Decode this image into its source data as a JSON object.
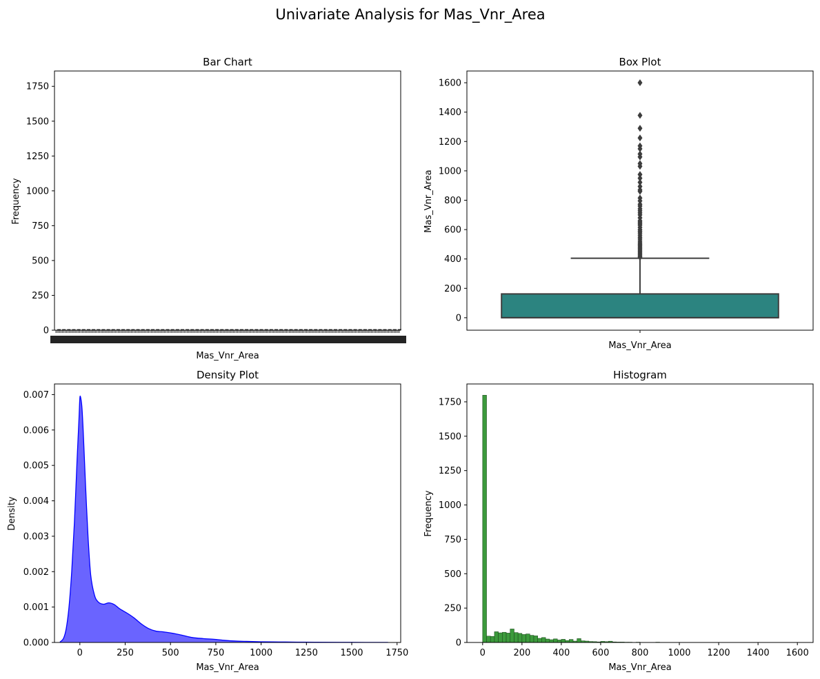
{
  "figure": {
    "suptitle": "Univariate Analysis for Mas_Vnr_Area",
    "colors": {
      "box_fill": "#2c8480",
      "box_line": "#3d3d3d",
      "density_fill": "#6a64ff",
      "density_line": "#0000ff",
      "hist_fill": "#3c9a3c",
      "hist_edge": "#1f4d1f",
      "axis": "#000000"
    }
  },
  "chart_data": [
    {
      "type": "bar",
      "title": "Bar Chart",
      "xlabel": "Mas_Vnr_Area",
      "ylabel": "Frequency",
      "ylim": [
        0,
        1860
      ],
      "yticks": [
        0,
        250,
        500,
        750,
        1000,
        1250,
        1500,
        1750
      ],
      "note": "x tick labels are dense and overlapping (one per unique value), rendered illegibly"
    },
    {
      "type": "box",
      "title": "Box Plot",
      "xlabel": "Mas_Vnr_Area",
      "ylabel": "Mas_Vnr_Area",
      "ylim": [
        -85,
        1680
      ],
      "yticks": [
        0,
        200,
        400,
        600,
        800,
        1000,
        1200,
        1400,
        1600
      ],
      "stats": {
        "min": 0,
        "q1": 0,
        "median": 0,
        "q3": 162,
        "whisker_high": 405
      },
      "outliers": [
        1600,
        1378,
        1290,
        1224,
        1170,
        1150,
        1115,
        1095,
        1050,
        1031,
        975,
        950,
        922,
        894,
        870,
        860,
        815,
        796,
        772,
        760,
        742,
        728,
        714,
        700,
        680,
        660,
        651,
        640,
        630,
        615,
        600,
        588,
        576,
        562,
        548,
        536,
        522,
        510,
        500,
        490,
        480,
        470,
        460,
        450,
        440,
        430,
        420,
        412
      ]
    },
    {
      "type": "area",
      "title": "Density Plot",
      "xlabel": "Mas_Vnr_Area",
      "ylabel": "Density",
      "xlim": [
        -140,
        1770
      ],
      "ylim": [
        0,
        0.0073
      ],
      "xticks": [
        0,
        250,
        500,
        750,
        1000,
        1250,
        1500,
        1750
      ],
      "yticks": [
        0.0,
        0.001,
        0.002,
        0.003,
        0.004,
        0.005,
        0.006,
        0.007
      ],
      "x": [
        -110,
        -90,
        -75,
        -60,
        -45,
        -30,
        -15,
        -5,
        0,
        5,
        12,
        20,
        30,
        45,
        60,
        80,
        100,
        130,
        160,
        190,
        220,
        260,
        300,
        340,
        380,
        420,
        460,
        500,
        560,
        620,
        680,
        740,
        800,
        860,
        920,
        1000,
        1100,
        1200,
        1300,
        1500,
        1700
      ],
      "y": [
        1e-05,
        0.00012,
        0.0004,
        0.001,
        0.002,
        0.0034,
        0.0052,
        0.0063,
        0.0069,
        0.0069,
        0.0066,
        0.0058,
        0.0046,
        0.003,
        0.0019,
        0.00135,
        0.00115,
        0.00108,
        0.00112,
        0.00107,
        0.00095,
        0.00083,
        0.00069,
        0.00052,
        0.00039,
        0.00032,
        0.0003,
        0.00027,
        0.00021,
        0.00014,
        0.00011,
        9e-05,
        6e-05,
        4e-05,
        3e-05,
        2e-05,
        1.5e-05,
        1e-05,
        8e-06,
        4e-06,
        2e-06
      ]
    },
    {
      "type": "bar",
      "subtype": "histogram",
      "title": "Histogram",
      "xlabel": "Mas_Vnr_Area",
      "ylabel": "Frequency",
      "xlim": [
        -80,
        1680
      ],
      "ylim": [
        0,
        1880
      ],
      "xticks": [
        0,
        200,
        400,
        600,
        800,
        1000,
        1200,
        1400,
        1600
      ],
      "yticks": [
        0,
        250,
        500,
        750,
        1000,
        1250,
        1500,
        1750
      ],
      "bin_width": 20,
      "bin_start": 0,
      "counts": [
        1798,
        46,
        44,
        78,
        70,
        74,
        68,
        98,
        72,
        66,
        58,
        62,
        52,
        48,
        30,
        36,
        25,
        20,
        26,
        18,
        23,
        14,
        22,
        10,
        28,
        12,
        10,
        7,
        6,
        4,
        8,
        6,
        9,
        4,
        3,
        3,
        2,
        2,
        1,
        2,
        1,
        1,
        0,
        1,
        2,
        1,
        0,
        1,
        0,
        0,
        1,
        0,
        1,
        0,
        0,
        1,
        0,
        1,
        0,
        0,
        1,
        0,
        0,
        0,
        0,
        0,
        0,
        0,
        0,
        1
      ]
    }
  ]
}
